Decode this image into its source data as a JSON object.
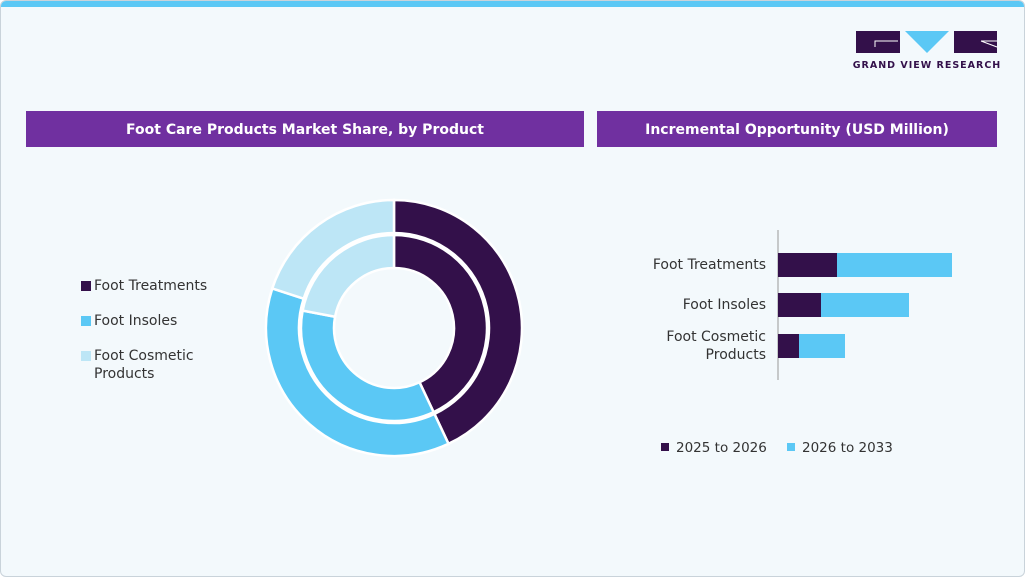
{
  "brand": "GRAND VIEW RESEARCH",
  "chart_data": [
    {
      "type": "pie",
      "title": "Foot Care Products Market Share, by Product",
      "categories": [
        "Foot Treatments",
        "Foot Insoles",
        "Foot Cosmetic Products"
      ],
      "colors": [
        "#33104a",
        "#5bc8f5",
        "#bde6f6"
      ],
      "series": [
        {
          "values": [
            43,
            37,
            20
          ]
        },
        {
          "values": [
            43,
            35,
            22
          ]
        }
      ]
    },
    {
      "type": "bar",
      "orientation": "horizontal",
      "stacked": true,
      "title": "Incremental Opportunity (USD Million)",
      "categories": [
        "Foot Treatments",
        "Foot Insoles",
        "Foot Cosmetic Products"
      ],
      "series": [
        {
          "name": "2025 to 2026",
          "color": "#33104a",
          "values": [
            59,
            43,
            21
          ]
        },
        {
          "name": "2026 to 2033",
          "color": "#5bc8f5",
          "values": [
            115,
            88,
            46
          ]
        }
      ],
      "xlim": [
        0,
        200
      ]
    }
  ]
}
